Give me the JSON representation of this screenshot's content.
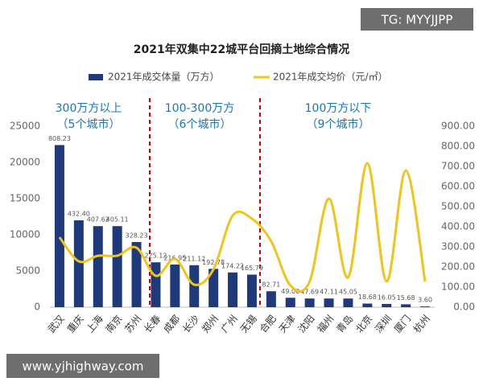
{
  "chart_data": {
    "type": "bar-line",
    "title": "2021年双集中22城平台回摘土地综合情况",
    "watermarks": [
      "TG: MYYJJPP",
      "www.yjhighway.com"
    ],
    "annotations": [
      "300万方以上",
      "（5个城市）",
      "100-300万方",
      "（6个城市）",
      "100万方以下",
      "（9个城市）"
    ],
    "categories": [
      "武汉",
      "重庆",
      "上海",
      "南京",
      "苏州",
      "长春",
      "成都",
      "长沙",
      "郑州",
      "广州",
      "无锡",
      "合肥",
      "天津",
      "沈阳",
      "福州",
      "青岛",
      "北京",
      "深圳",
      "厦门",
      "杭州"
    ],
    "bar_labels": [
      "808.23",
      "432.40",
      "407.62",
      "405.11",
      "328.23",
      "225.12",
      "216.95",
      "211.12",
      "192.78",
      "174.22",
      "165.79",
      "82.71",
      "49.00",
      "47.69",
      "47.11",
      "45.05",
      "18.68",
      "16.05",
      "15.68",
      "3.60"
    ],
    "series": [
      {
        "name": "2021年成交体量（万方）",
        "color": "#1f3a7a",
        "type": "bar",
        "values": [
          22400,
          12000,
          11200,
          11200,
          9000,
          6200,
          5900,
          5800,
          5300,
          4800,
          4500,
          2200,
          1300,
          1200,
          1200,
          1200,
          500,
          450,
          400,
          100
        ]
      },
      {
        "name": "2021年成交均价（元/㎡）",
        "color": "#f0c419",
        "type": "line",
        "axis": "y2",
        "values": [
          348,
          228,
          256,
          256,
          296,
          156,
          240,
          112,
          188,
          456,
          440,
          328,
          108,
          128,
          540,
          148,
          716,
          128,
          680,
          128
        ]
      }
    ],
    "ylim": [
      0,
      25000
    ],
    "yticks": [
      0,
      5000,
      10000,
      15000,
      20000,
      25000
    ],
    "y2lim": [
      0,
      900
    ],
    "y2ticks": [
      {
        "value": 0,
        "label": "0.00"
      },
      {
        "value": 100,
        "label": "100.00"
      },
      {
        "value": 200,
        "label": "200.00"
      },
      {
        "value": 300,
        "label": "300.00"
      },
      {
        "value": 400,
        "label": "400.00"
      },
      {
        "value": 500,
        "label": "500.00"
      },
      {
        "value": 600,
        "label": "600.00"
      },
      {
        "value": 700,
        "label": "700.00"
      },
      {
        "value": 800,
        "label": "800.00"
      },
      {
        "value": 900,
        "label": "900.00"
      }
    ]
  }
}
